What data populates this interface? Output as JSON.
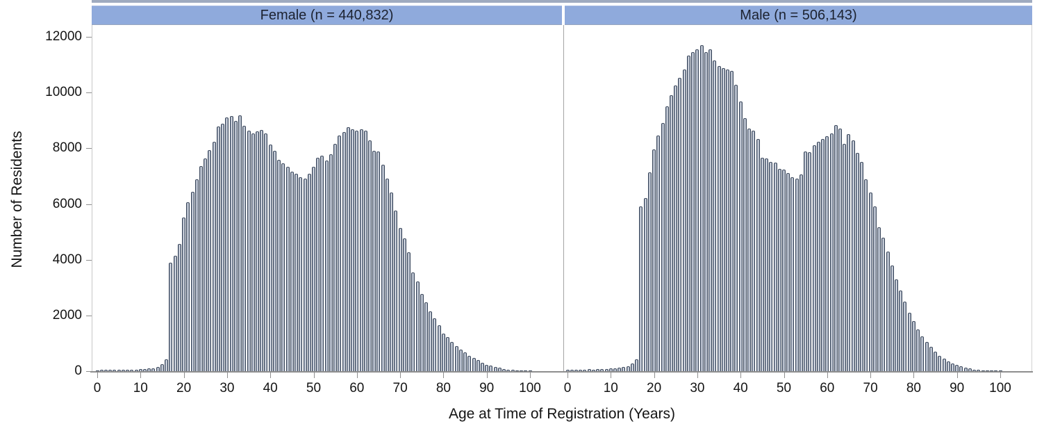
{
  "chart_data": {
    "type": "bar",
    "subtype": "histogram",
    "layout": "two side-by-side panels sharing y-axis, paneled by sex; bin width 1 year; no gridlines; white plot background",
    "xlabel": "Age at Time of Registration (Years)",
    "ylabel": "Number of Residents",
    "xlim": [
      0,
      105
    ],
    "ylim": [
      0,
      12000
    ],
    "x_ticks": [
      0,
      10,
      20,
      30,
      40,
      50,
      60,
      70,
      80,
      90,
      100
    ],
    "y_ticks": [
      0,
      2000,
      4000,
      6000,
      8000,
      10000,
      12000
    ],
    "ages": "0-100 by 1 year",
    "panels": [
      {
        "title": "Female (n = 440,832)",
        "values": [
          30,
          40,
          45,
          40,
          50,
          55,
          50,
          60,
          55,
          60,
          70,
          80,
          90,
          110,
          140,
          250,
          420,
          3890,
          4140,
          4560,
          5520,
          6060,
          6430,
          6890,
          7350,
          7640,
          7930,
          8230,
          8770,
          8890,
          9100,
          9150,
          8980,
          9180,
          8810,
          8630,
          8530,
          8610,
          8650,
          8530,
          8130,
          7910,
          7580,
          7460,
          7340,
          7160,
          7090,
          6960,
          6910,
          7090,
          7340,
          7660,
          7730,
          7550,
          7790,
          8160,
          8450,
          8580,
          8760,
          8690,
          8640,
          8690,
          8640,
          8290,
          7920,
          7880,
          7420,
          6920,
          6410,
          5760,
          5140,
          4770,
          4270,
          3540,
          3220,
          2770,
          2470,
          2150,
          1900,
          1650,
          1350,
          1220,
          1050,
          900,
          770,
          670,
          550,
          470,
          400,
          300,
          230,
          200,
          150,
          120,
          80,
          50,
          40,
          30,
          20,
          15,
          10
        ]
      },
      {
        "title": "Male (n = 506,143)",
        "values": [
          40,
          50,
          55,
          50,
          60,
          65,
          60,
          70,
          65,
          70,
          90,
          110,
          130,
          150,
          180,
          280,
          430,
          5910,
          6210,
          7140,
          7960,
          8460,
          8910,
          9510,
          9910,
          10250,
          10530,
          10830,
          11330,
          11450,
          11560,
          11700,
          11450,
          11560,
          11160,
          10950,
          10880,
          10820,
          10780,
          10280,
          9690,
          9080,
          8710,
          8630,
          8330,
          7670,
          7630,
          7500,
          7480,
          7250,
          7230,
          7100,
          6950,
          6910,
          7050,
          7880,
          7850,
          8120,
          8230,
          8330,
          8420,
          8540,
          8830,
          8710,
          8170,
          8500,
          8290,
          7830,
          7500,
          6880,
          6420,
          5920,
          5170,
          4800,
          4300,
          3800,
          3300,
          2900,
          2500,
          2100,
          1800,
          1500,
          1250,
          1050,
          880,
          700,
          560,
          450,
          360,
          280,
          220,
          170,
          130,
          90,
          60,
          40,
          30,
          25,
          20,
          15,
          10
        ]
      }
    ],
    "colors": {
      "panel_header_bg": "#8faadc",
      "header_text": "#1c2230",
      "bar_edge": "#3d4a5e",
      "bar_fill_highlight": "#f3f5f9",
      "bar_fill_shadow": "#5a6880",
      "axis_line": "#8e8e8e",
      "tick_text": "#141414",
      "background": "#ffffff"
    }
  }
}
